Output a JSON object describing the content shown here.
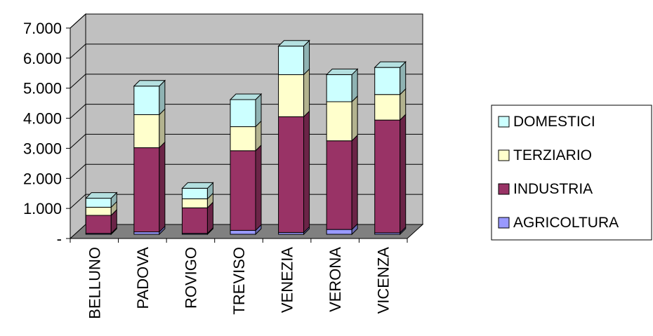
{
  "chart_data": {
    "type": "bar",
    "stacked": true,
    "three_d": true,
    "categories": [
      "BELLUNO",
      "PADOVA",
      "ROVIGO",
      "TREVISO",
      "VENEZIA",
      "VERONA",
      "VICENZA"
    ],
    "series": [
      {
        "name": "AGRICOLTURA",
        "color": "#9999FF",
        "values": [
          30,
          80,
          30,
          130,
          60,
          160,
          50
        ]
      },
      {
        "name": "INDUSTRIA",
        "color": "#993366",
        "values": [
          600,
          2800,
          850,
          2650,
          3850,
          2950,
          3750
        ]
      },
      {
        "name": "TERZIARIO",
        "color": "#FFFFCC",
        "values": [
          270,
          1100,
          300,
          800,
          1400,
          1300,
          850
        ]
      },
      {
        "name": "DOMESTICI",
        "color": "#CCFFFF",
        "values": [
          300,
          950,
          350,
          900,
          950,
          900,
          900
        ]
      }
    ],
    "y_ticks": [
      "-",
      "1.000",
      "2.000",
      "3.000",
      "4.000",
      "5.000",
      "6.000",
      "7.000"
    ],
    "ylim": [
      0,
      7000
    ],
    "grid": true,
    "legend_position": "right",
    "colors": {
      "wall": "#C0C0C0",
      "floor": "#808080"
    }
  }
}
